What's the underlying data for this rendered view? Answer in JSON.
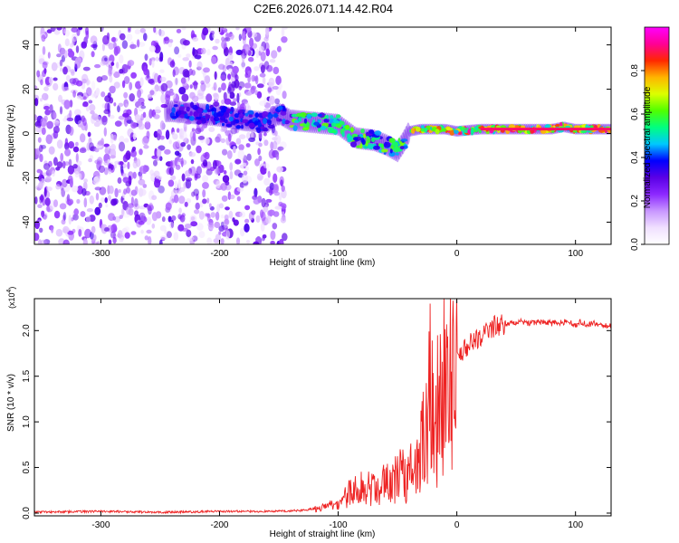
{
  "figure_title": "C2E6.2026.071.14.42.R04",
  "chart_data": [
    {
      "type": "heatmap",
      "title": "C2E6.2026.071.14.42.R04",
      "xlabel": "Height of straight line (km)",
      "ylabel": "Frequency (Hz)",
      "xlim": [
        -356,
        130
      ],
      "ylim": [
        -50,
        48
      ],
      "xticks": [
        -300,
        -200,
        -100,
        0,
        100
      ],
      "yticks": [
        -40,
        -20,
        0,
        20,
        40
      ],
      "colorbar": {
        "label": "Normalized spectral amplitude",
        "range": [
          0.0,
          1.0
        ],
        "ticks": [
          0.0,
          0.2,
          0.4,
          0.6,
          0.8
        ],
        "colormap": [
          "#ffffff",
          "#f0e0ff",
          "#c896ff",
          "#8c28ff",
          "#5a00e6",
          "#0000ff",
          "#00c8ff",
          "#00ff80",
          "#50ff00",
          "#dcff00",
          "#ffb400",
          "#ff2800",
          "#ff0096",
          "#ff00ff"
        ]
      },
      "ridge": {
        "x": [
          -240,
          -220,
          -200,
          -180,
          -160,
          -150,
          -140,
          -120,
          -100,
          -85,
          -70,
          -60,
          -50,
          -45,
          -40,
          -30,
          -20,
          -10,
          0,
          20,
          40,
          60,
          80,
          90,
          100,
          110,
          130
        ],
        "y": [
          10,
          9,
          8,
          6,
          5,
          9,
          6,
          5,
          4,
          -2,
          -3,
          -5,
          -8,
          -4,
          1,
          2,
          2,
          2,
          1,
          2,
          2,
          2,
          2,
          3,
          2,
          2,
          2
        ]
      }
    },
    {
      "type": "line",
      "xlabel": "Height of straight line (km)",
      "ylabel": "SNR (10 * v/v)",
      "multiplier_label": "(x10",
      "multiplier_exp": "4",
      "multiplier_close": ")",
      "xlim": [
        -356,
        130
      ],
      "ylim": [
        -0.03,
        2.35
      ],
      "xticks": [
        -300,
        -200,
        -100,
        0,
        100
      ],
      "yticks": [
        0.0,
        0.5,
        1.0,
        1.5,
        2.0
      ],
      "color": "#ee2222",
      "series": [
        {
          "name": "SNR",
          "x": [
            -356,
            -300,
            -250,
            -200,
            -160,
            -130,
            -115,
            -100,
            -95,
            -90,
            -85,
            -80,
            -75,
            -70,
            -65,
            -60,
            -55,
            -50,
            -45,
            -40,
            -35,
            -30,
            -27,
            -24,
            -22,
            -20,
            -18,
            -16,
            -14,
            -12,
            -10,
            -5,
            0,
            5,
            10,
            15,
            20,
            25,
            30,
            35,
            40,
            50,
            60,
            70,
            80,
            90,
            100,
            105,
            110,
            115,
            120,
            125,
            130
          ],
          "y": [
            0.01,
            0.02,
            0.01,
            0.02,
            0.02,
            0.03,
            0.06,
            0.12,
            0.2,
            0.25,
            0.28,
            0.35,
            0.3,
            0.38,
            0.35,
            0.42,
            0.4,
            0.45,
            0.5,
            0.55,
            0.65,
            0.8,
            1.0,
            1.3,
            2.1,
            1.4,
            1.2,
            1.35,
            1.5,
            1.55,
            1.6,
            1.65,
            1.7,
            1.8,
            1.85,
            1.9,
            1.95,
            2.0,
            2.05,
            2.07,
            2.08,
            2.1,
            2.09,
            2.1,
            2.08,
            2.1,
            2.07,
            2.1,
            2.06,
            2.08,
            2.07,
            2.05,
            2.06
          ]
        }
      ]
    }
  ]
}
